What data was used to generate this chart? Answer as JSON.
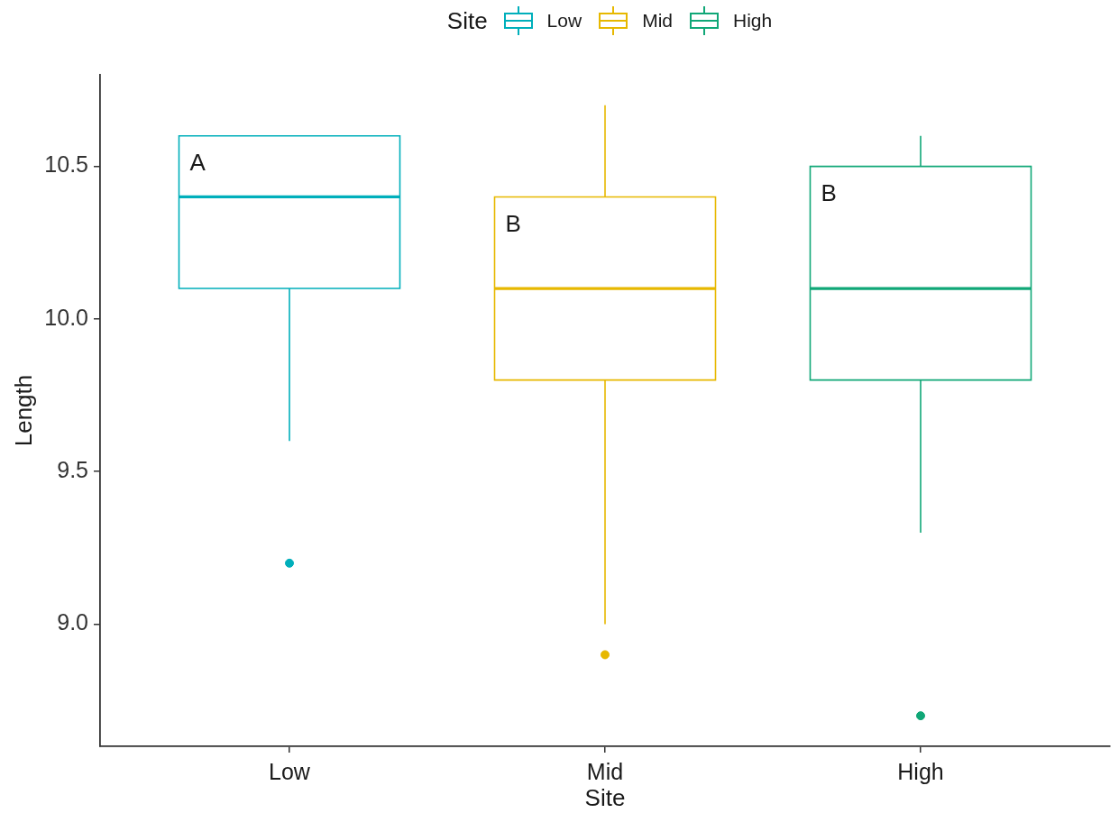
{
  "chart_data": {
    "type": "box",
    "xlabel": "Site",
    "ylabel": "Length",
    "legend_title": "Site",
    "legend": "top",
    "categories": [
      "Low",
      "Mid",
      "High"
    ],
    "series": [
      {
        "name": "Low",
        "color": "#00afbb",
        "boxes": [
          {
            "low": 9.6,
            "q1": 10.1,
            "median": 10.4,
            "q3": 10.6,
            "high": 10.6,
            "outliers": [
              9.2
            ]
          },
          null,
          null
        ]
      },
      {
        "name": "Mid",
        "color": "#e7b800",
        "boxes": [
          null,
          {
            "low": 9.0,
            "q1": 9.8,
            "median": 10.1,
            "q3": 10.4,
            "high": 10.7,
            "outliers": [
              8.9
            ]
          },
          null
        ]
      },
      {
        "name": "High",
        "color": "#10a777",
        "boxes": [
          null,
          null,
          {
            "low": 9.3,
            "q1": 9.8,
            "median": 10.1,
            "q3": 10.5,
            "high": 10.6,
            "outliers": [
              8.7
            ]
          }
        ]
      }
    ],
    "ylim": [
      8.6,
      10.8
    ],
    "yticks": [
      {
        "value": 9,
        "label": "9.0"
      },
      9.5,
      {
        "value": 10,
        "label": "10.0"
      },
      10.5
    ],
    "annotations": [
      "A",
      "B",
      "B"
    ]
  }
}
